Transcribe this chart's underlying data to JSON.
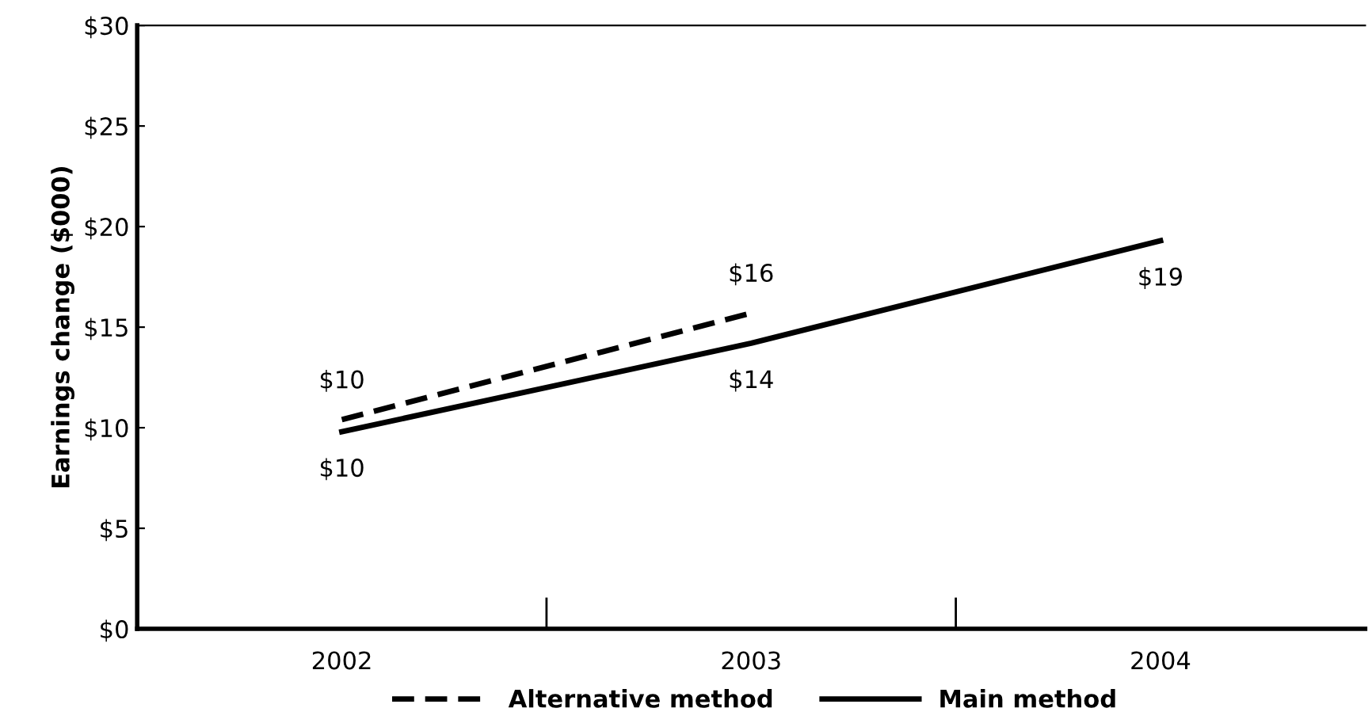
{
  "chart_data": {
    "type": "line",
    "ylabel": "Earnings change ($000)",
    "categories": [
      "2002",
      "2003",
      "2004"
    ],
    "series": [
      {
        "name": "Alternative method",
        "color": "#000000",
        "line_style": "dashed",
        "values": [
          10.4,
          15.7,
          null
        ],
        "value_labels": [
          "$10",
          "$16",
          null
        ]
      },
      {
        "name": "Main method",
        "color": "#000000",
        "line_style": "solid",
        "values": [
          9.8,
          14.2,
          19.3
        ],
        "value_labels": [
          "$10",
          "$14",
          "$19"
        ]
      }
    ],
    "ylim": [
      0,
      30
    ],
    "yticks": [
      {
        "value": 0,
        "label": "$0"
      },
      {
        "value": 5,
        "label": "$5"
      },
      {
        "value": 10,
        "label": "$10"
      },
      {
        "value": 15,
        "label": "$15"
      },
      {
        "value": 20,
        "label": "$20"
      },
      {
        "value": 25,
        "label": "$25"
      },
      {
        "value": 30,
        "label": "$30"
      }
    ],
    "legend": "bottom",
    "grid": false,
    "marker": "none"
  }
}
